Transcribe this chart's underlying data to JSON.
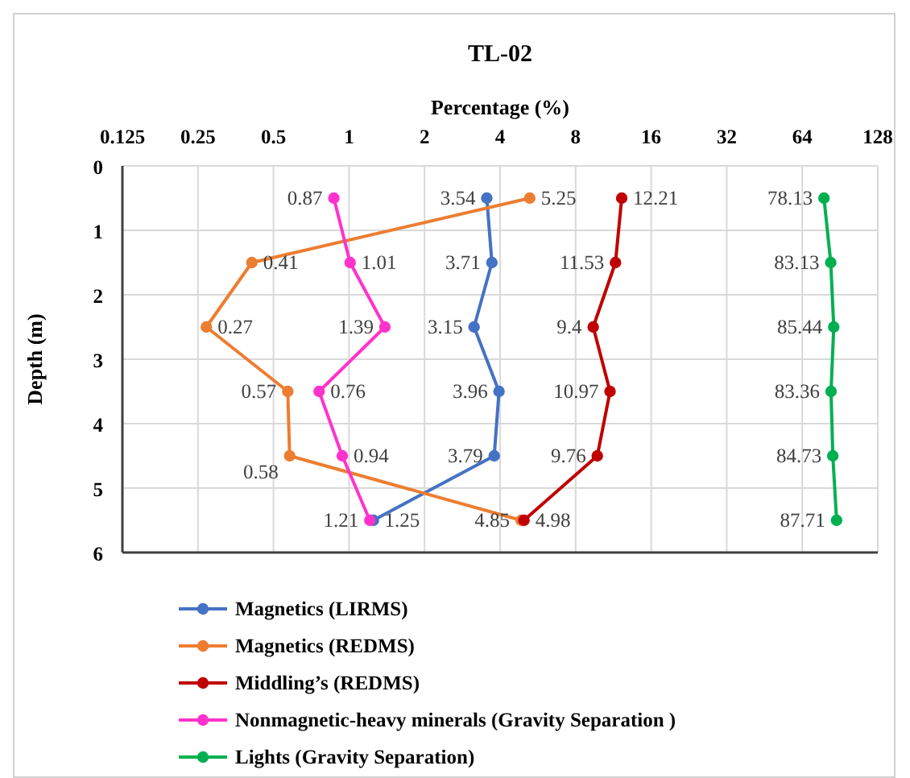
{
  "chart_data": {
    "type": "line",
    "orientation": "horizontal",
    "title": "TL-02",
    "xlabel": "Percentage (%)",
    "ylabel": "Depth (m)",
    "log": "x",
    "xlim": [
      0.125,
      128
    ],
    "xticks": [
      0.125,
      0.25,
      0.5,
      1,
      2,
      4,
      8,
      16,
      32,
      64,
      128
    ],
    "ylim": [
      6,
      0
    ],
    "yticks": [
      0,
      1,
      2,
      3,
      4,
      5,
      6
    ],
    "grid": true,
    "marker": "circle",
    "legend": "bottom",
    "data_labels": true,
    "x": [
      0.5,
      1.5,
      2.5,
      3.5,
      4.5,
      5.5
    ],
    "series": [
      {
        "name": "Magnetics (LIRMS)",
        "color": "#4472c4",
        "values": [
          3.54,
          3.71,
          3.15,
          3.96,
          3.79,
          1.25
        ]
      },
      {
        "name": "Magnetics (REDMS)",
        "color": "#ed7d31",
        "values": [
          5.25,
          0.41,
          0.27,
          0.57,
          0.58,
          4.85
        ]
      },
      {
        "name": "Middling’s (REDMS)",
        "color": "#c00000",
        "values": [
          12.21,
          11.53,
          9.4,
          10.97,
          9.76,
          4.98
        ]
      },
      {
        "name": "Nonmagnetic-heavy minerals (Gravity Separation )",
        "color": "#ff33cc",
        "values": [
          0.87,
          1.01,
          1.39,
          0.76,
          0.94,
          1.21
        ]
      },
      {
        "name": "Lights (Gravity Separation)",
        "color": "#00b050",
        "values": [
          78.13,
          83.13,
          85.44,
          83.36,
          84.73,
          87.71
        ]
      }
    ]
  }
}
